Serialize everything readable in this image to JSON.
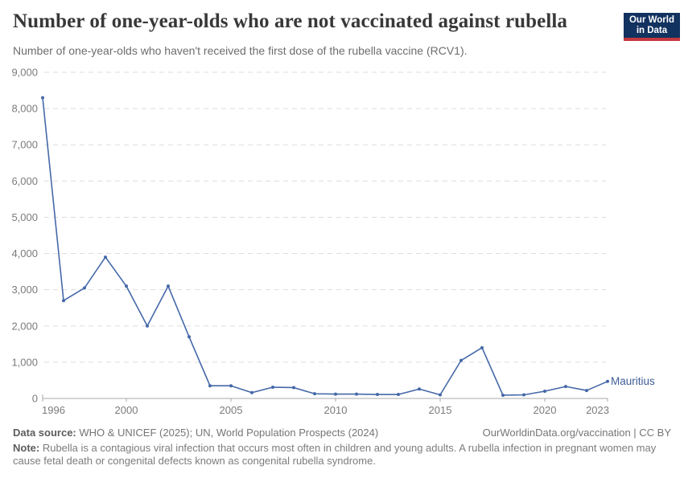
{
  "header": {
    "title": "Number of one-year-olds who are not vaccinated against rubella",
    "subtitle": "Number of one-year-olds who haven't received the first dose of the rubella vaccine (RCV1)."
  },
  "logo": {
    "line1": "Our World",
    "line2": "in Data",
    "bg_color": "#12325f",
    "bar_color": "#c3383f"
  },
  "chart_data": {
    "type": "line",
    "title": "Number of one-year-olds who are not vaccinated against rubella",
    "entity_label": "Mauritius",
    "x": [
      1996,
      1997,
      1998,
      1999,
      2000,
      2001,
      2002,
      2003,
      2004,
      2005,
      2006,
      2007,
      2008,
      2009,
      2010,
      2011,
      2012,
      2013,
      2014,
      2015,
      2016,
      2017,
      2018,
      2019,
      2020,
      2021,
      2022,
      2023
    ],
    "series": [
      {
        "name": "Mauritius",
        "color": "#4568a8",
        "values": [
          8300,
          2700,
          3050,
          3900,
          3100,
          2000,
          3100,
          1700,
          350,
          350,
          160,
          310,
          300,
          130,
          120,
          120,
          110,
          110,
          260,
          100,
          1050,
          1400,
          90,
          100,
          200,
          330,
          220,
          470
        ]
      }
    ],
    "xlim": [
      1996,
      2023
    ],
    "ylim": [
      0,
      9000
    ],
    "yticks": [
      0,
      1000,
      2000,
      3000,
      4000,
      5000,
      6000,
      7000,
      8000,
      9000
    ],
    "xticks": [
      1996,
      2000,
      2005,
      2010,
      2015,
      2020,
      2023
    ],
    "grid": "horizontal-dashed",
    "legend_position": "line-end-label",
    "grid_color": "#dddddd",
    "axis_color": "#a8a8a8",
    "tick_label_color": "#7b7b7b",
    "entity_label_color": "#3d5c94"
  },
  "footer": {
    "datasource_label": "Data source:",
    "datasource_text": " WHO & UNICEF (2025); UN, World Population Prospects (2024)",
    "credit": "OurWorldinData.org/vaccination | CC BY",
    "note_label": "Note:",
    "note_text": " Rubella is a contagious viral infection that occurs most often in children and young adults. A rubella infection in pregnant women may cause fetal death or congenital defects known as congenital rubella syndrome."
  }
}
